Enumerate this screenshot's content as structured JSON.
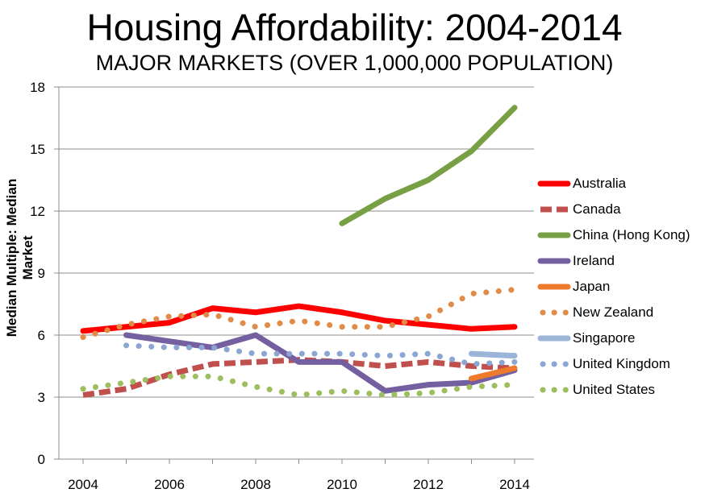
{
  "title": "Housing Affordability: 2004-2014",
  "subtitle": "MAJOR MARKETS (OVER 1,000,000 POPULATION)",
  "chart_data": {
    "type": "line",
    "ylabel": "Median Multiple: Median Market",
    "xlabel": "",
    "xlim": [
      2004,
      2014
    ],
    "ylim": [
      0,
      18
    ],
    "x_ticks": [
      2004,
      2006,
      2008,
      2010,
      2012,
      2014
    ],
    "y_ticks": [
      0,
      3,
      6,
      9,
      12,
      15,
      18
    ],
    "grid": "horizontal",
    "legend_position": "right",
    "series": [
      {
        "name": "Australia",
        "color": "#ff0000",
        "style": "solid",
        "x": [
          2004,
          2005,
          2006,
          2007,
          2008,
          2009,
          2010,
          2011,
          2012,
          2013,
          2014
        ],
        "y": [
          6.2,
          6.4,
          6.6,
          7.3,
          7.1,
          7.4,
          7.1,
          6.7,
          6.5,
          6.3,
          6.4
        ]
      },
      {
        "name": "Canada",
        "color": "#c0504d",
        "style": "dashed",
        "x": [
          2004,
          2005,
          2006,
          2007,
          2008,
          2009,
          2010,
          2011,
          2012,
          2013,
          2014
        ],
        "y": [
          3.1,
          3.4,
          4.1,
          4.6,
          4.7,
          4.8,
          4.7,
          4.5,
          4.7,
          4.5,
          4.4
        ]
      },
      {
        "name": "China (Hong Kong)",
        "color": "#77a045",
        "style": "solid",
        "x": [
          2010,
          2011,
          2012,
          2013,
          2014
        ],
        "y": [
          11.4,
          12.6,
          13.5,
          14.9,
          17.0
        ]
      },
      {
        "name": "Ireland",
        "color": "#7460a0",
        "style": "solid",
        "x": [
          2005,
          2006,
          2007,
          2008,
          2009,
          2010,
          2011,
          2012,
          2013,
          2014
        ],
        "y": [
          6.0,
          5.7,
          5.4,
          6.0,
          4.7,
          4.7,
          3.3,
          3.6,
          3.7,
          4.3
        ]
      },
      {
        "name": "Japan",
        "color": "#ee7a2b",
        "style": "solid",
        "x": [
          2013,
          2014
        ],
        "y": [
          3.9,
          4.4
        ]
      },
      {
        "name": "New Zealand",
        "color": "#e18b48",
        "style": "dotted",
        "x": [
          2004,
          2005,
          2006,
          2007,
          2008,
          2009,
          2010,
          2011,
          2012,
          2013,
          2014
        ],
        "y": [
          5.9,
          6.5,
          6.9,
          7.0,
          6.4,
          6.7,
          6.4,
          6.4,
          6.9,
          8.0,
          8.2
        ]
      },
      {
        "name": "Singapore",
        "color": "#9bb4d8",
        "style": "solid",
        "x": [
          2013,
          2014
        ],
        "y": [
          5.1,
          5.0
        ]
      },
      {
        "name": "United Kingdom",
        "color": "#8ba6d2",
        "style": "dotted",
        "x": [
          2005,
          2006,
          2007,
          2008,
          2009,
          2010,
          2011,
          2012,
          2013,
          2014
        ],
        "y": [
          5.5,
          5.4,
          5.4,
          5.1,
          5.1,
          5.1,
          5.0,
          5.1,
          4.6,
          4.7
        ]
      },
      {
        "name": "United States",
        "color": "#9cbe5e",
        "style": "dotted",
        "x": [
          2004,
          2005,
          2006,
          2007,
          2008,
          2009,
          2010,
          2011,
          2012,
          2013,
          2014
        ],
        "y": [
          3.4,
          3.7,
          4.0,
          4.0,
          3.5,
          3.1,
          3.3,
          3.1,
          3.2,
          3.5,
          3.6
        ]
      }
    ]
  }
}
